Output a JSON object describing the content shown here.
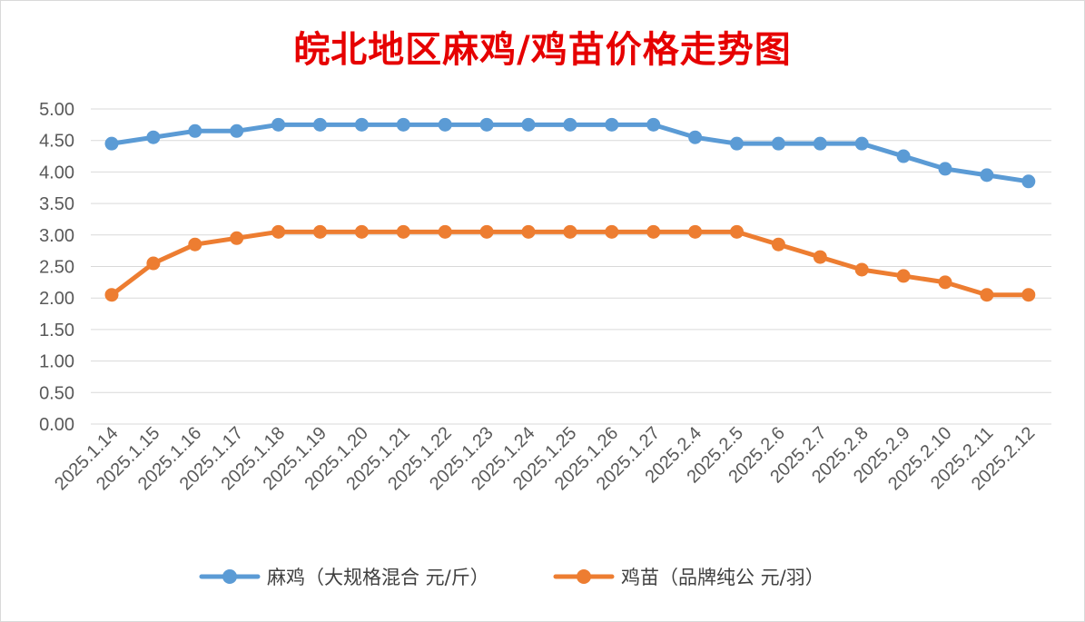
{
  "chart_data": {
    "type": "line",
    "title": "皖北地区麻鸡/鸡苗价格走势图",
    "x": [
      "2025.1.14",
      "2025.1.15",
      "2025.1.16",
      "2025.1.17",
      "2025.1.18",
      "2025.1.19",
      "2025.1.20",
      "2025.1.21",
      "2025.1.22",
      "2025.1.23",
      "2025.1.24",
      "2025.1.25",
      "2025.1.26",
      "2025.1.27",
      "2025.2.4",
      "2025.2.5",
      "2025.2.6",
      "2025.2.7",
      "2025.2.8",
      "2025.2.9",
      "2025.2.10",
      "2025.2.11",
      "2025.2.12"
    ],
    "yticks": [
      "0.00",
      "0.50",
      "1.00",
      "1.50",
      "2.00",
      "2.50",
      "3.00",
      "3.50",
      "4.00",
      "4.50",
      "5.00"
    ],
    "ylim": [
      0,
      5
    ],
    "grid": true,
    "legend_position": "bottom",
    "series": [
      {
        "name": "麻鸡（大规格混合 元/斤）",
        "color": "#5b9bd5",
        "values": [
          4.45,
          4.55,
          4.65,
          4.65,
          4.75,
          4.75,
          4.75,
          4.75,
          4.75,
          4.75,
          4.75,
          4.75,
          4.75,
          4.75,
          4.55,
          4.45,
          4.45,
          4.45,
          4.45,
          4.25,
          4.05,
          3.95,
          3.85
        ]
      },
      {
        "name": "鸡苗（品牌纯公 元/羽）",
        "color": "#ed7d31",
        "values": [
          2.05,
          2.55,
          2.85,
          2.95,
          3.05,
          3.05,
          3.05,
          3.05,
          3.05,
          3.05,
          3.05,
          3.05,
          3.05,
          3.05,
          3.05,
          3.05,
          2.85,
          2.65,
          2.45,
          2.35,
          2.25,
          2.05,
          2.05
        ]
      }
    ]
  }
}
